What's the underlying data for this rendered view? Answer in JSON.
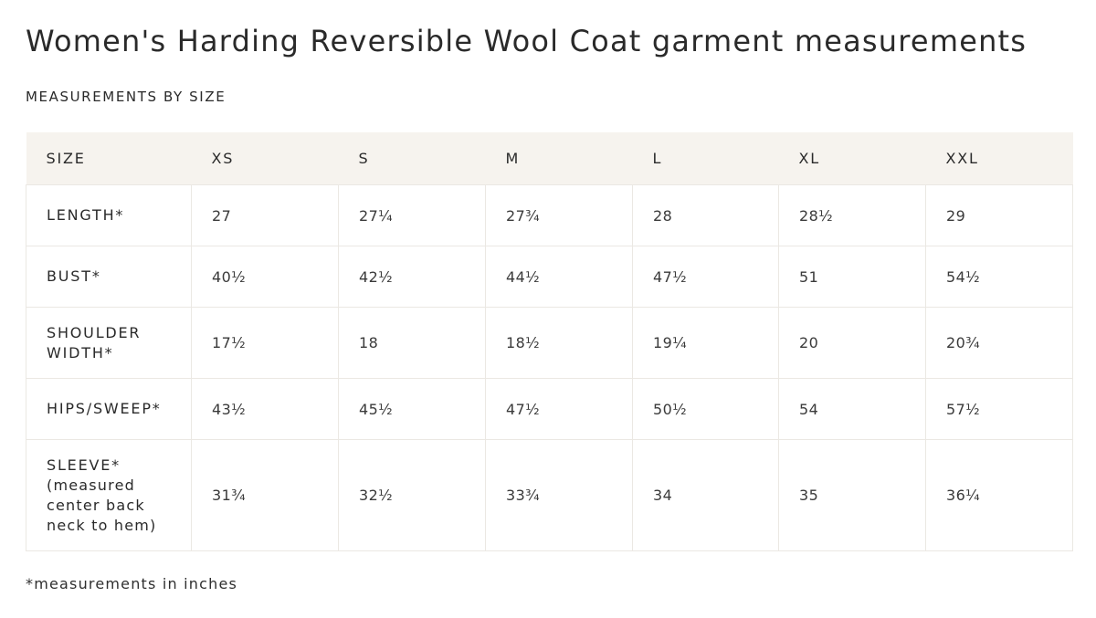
{
  "title": "Women's Harding Reversible Wool Coat garment measurements",
  "section_heading": "MEASUREMENTS BY SIZE",
  "table": {
    "header_label": "SIZE",
    "sizes": [
      "XS",
      "S",
      "M",
      "L",
      "XL",
      "XXL"
    ],
    "rows": [
      {
        "label": "LENGTH*",
        "note": "",
        "values": [
          "27",
          "27¼",
          "27¾",
          "28",
          "28½",
          "29"
        ]
      },
      {
        "label": "BUST*",
        "note": "",
        "values": [
          "40½",
          "42½",
          "44½",
          "47½",
          "51",
          "54½"
        ]
      },
      {
        "label": "SHOULDER WIDTH*",
        "note": "",
        "values": [
          "17½",
          "18",
          "18½",
          "19¼",
          "20",
          "20¾"
        ]
      },
      {
        "label": "HIPS/SWEEP*",
        "note": "",
        "values": [
          "43½",
          "45½",
          "47½",
          "50½",
          "54",
          "57½"
        ]
      },
      {
        "label": "SLEEVE*",
        "note": "(measured center back neck to hem)",
        "values": [
          "31¾",
          "32½",
          "33¾",
          "34",
          "35",
          "36¼"
        ]
      }
    ]
  },
  "footnote": "*measurements in inches",
  "colors": {
    "header_background": "#f6f3ee",
    "border": "#ebe8e3",
    "text": "#2a2a2a"
  }
}
